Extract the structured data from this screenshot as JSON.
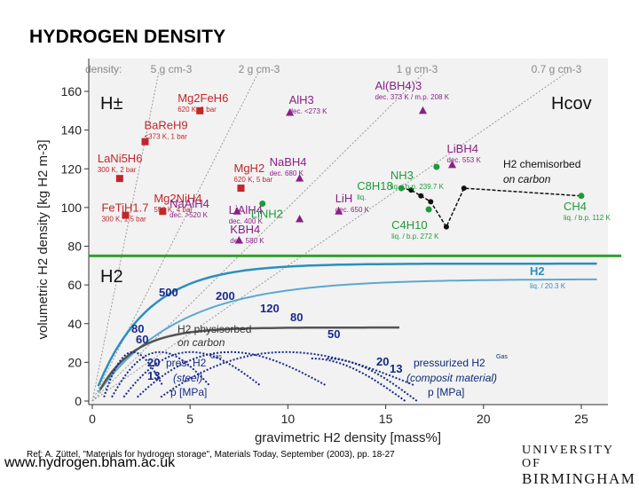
{
  "slide": {
    "title": "HYDROGEN DENSITY",
    "website": "www.hydrogen.bham.ac.uk",
    "reference": "Ref: A. Züttel, \"Materials for hydrogen storage\", Materials Today, September (2003), pp. 18-27",
    "logo_line1": "UNIVERSITY OF",
    "logo_line2": "BIRMINGHAM"
  },
  "chart_data": {
    "type": "scatter",
    "xlabel": "gravimetric H2 density [mass%]",
    "ylabel": "volumetric H2 density [kg H2 m-3]",
    "xlim": [
      0,
      26
    ],
    "ylim": [
      0,
      160
    ],
    "xticks": [
      0,
      5,
      10,
      15,
      20,
      25
    ],
    "yticks": [
      0,
      20,
      40,
      60,
      80,
      100,
      120,
      140,
      160
    ],
    "grid": false,
    "colors": {
      "hydride": "#c0262c",
      "complex": "#8a1f86",
      "hydrocarbon": "#1e9a3a",
      "chemisorbed": "#111111",
      "h2_line": "#2a8fbf",
      "physisorbed": "#1a2a8a",
      "pressurized": "#0f2a7a",
      "separator": "#2fa12b"
    },
    "density_lines": {
      "label": "density:",
      "values": [
        {
          "label": "5 g cm-3",
          "slope": 50
        },
        {
          "label": "2 g cm-3",
          "slope": 20
        },
        {
          "label": "1 g cm-3",
          "slope": 10
        },
        {
          "label": "0.7 g cm-3",
          "slope": 7
        }
      ]
    },
    "region_labels": {
      "upper_left": "H±",
      "upper_right": "Hcov",
      "lower_left": "H2"
    },
    "separator_y": 75,
    "series": [
      {
        "group": "hydride",
        "marker": "square",
        "points": [
          {
            "label": "BaReH9",
            "note": "<373 K, 1 bar",
            "x": 2.7,
            "y": 134
          },
          {
            "label": "LaNi5H6",
            "note": "300 K, 2 bar",
            "x": 1.4,
            "y": 115
          },
          {
            "label": "Mg2FeH6",
            "note": "620 K, 1 bar",
            "x": 5.5,
            "y": 150
          },
          {
            "label": "FeTiH1.7",
            "note": "300 K, 1.5 bar",
            "x": 1.7,
            "y": 96
          },
          {
            "label": "Mg2NiH4",
            "note": "550 K, 4 bar",
            "x": 3.6,
            "y": 98
          },
          {
            "label": "MgH2",
            "note": "620 K, 5 bar",
            "x": 7.6,
            "y": 110
          }
        ]
      },
      {
        "group": "complex",
        "marker": "triangle",
        "points": [
          {
            "label": "AlH3",
            "note": "dec. <273 K",
            "x": 10.1,
            "y": 149
          },
          {
            "label": "Al(BH4)3",
            "note": "dec. 373 K / m.p. 208 K",
            "x": 16.9,
            "y": 150
          },
          {
            "label": "NaBH4",
            "note": "dec. 680 K",
            "x": 10.6,
            "y": 115
          },
          {
            "label": "LiBH4",
            "note": "dec. 553 K",
            "x": 18.4,
            "y": 122
          },
          {
            "label": "NaAlH4",
            "note": "dec. >520 K",
            "x": 7.4,
            "y": 98
          },
          {
            "label": "KBH4",
            "note": "dec. 580 K",
            "x": 7.5,
            "y": 83
          },
          {
            "label": "LiAlH4",
            "note": "dec. 400 K",
            "x": 10.6,
            "y": 94
          },
          {
            "label": "LiH",
            "note": "dec. 650 K",
            "x": 12.6,
            "y": 98
          }
        ]
      },
      {
        "group": "hydrocarbon",
        "marker": "circle",
        "points": [
          {
            "label": "LiNH2",
            "note": "",
            "x": 8.7,
            "y": 102
          },
          {
            "label": "C8H18",
            "note": "liq.",
            "x": 15.8,
            "y": 110
          },
          {
            "label": "NH3",
            "note": "liq. / b.p. 239.7 K",
            "x": 17.6,
            "y": 121
          },
          {
            "label": "C4H10",
            "note": "liq. / b.p. 272 K",
            "x": 17.2,
            "y": 99
          },
          {
            "label": "CH4",
            "note": "liq. / b.p. 112 K",
            "x": 25.0,
            "y": 106
          }
        ]
      }
    ],
    "chemisorbed_curve": {
      "label": "H2 chemisorbed on carbon",
      "x": [
        15.8,
        16.3,
        16.8,
        17.3,
        18.1,
        19.0,
        25.0
      ],
      "y": [
        110,
        109,
        106,
        103,
        90,
        110,
        106
      ]
    },
    "h2_liquid": {
      "label": "H2",
      "note": "liq. / 20.3 K",
      "y": 71
    },
    "physisorbed_label": "H2 physisorbed on carbon",
    "pressure_steel": {
      "label": "pres. H2",
      "gas_note": "Gas",
      "material": "(steel)",
      "unit": "p [MPa]",
      "values": [
        "500",
        "200",
        "120",
        "80",
        "50",
        "80",
        "60",
        "20",
        "13"
      ]
    },
    "pressure_composite": {
      "label": "pressurized H2",
      "gas_note": "Gas",
      "material": "(composit material)",
      "unit": "p [MPa]",
      "values": [
        "20",
        "13"
      ]
    }
  }
}
